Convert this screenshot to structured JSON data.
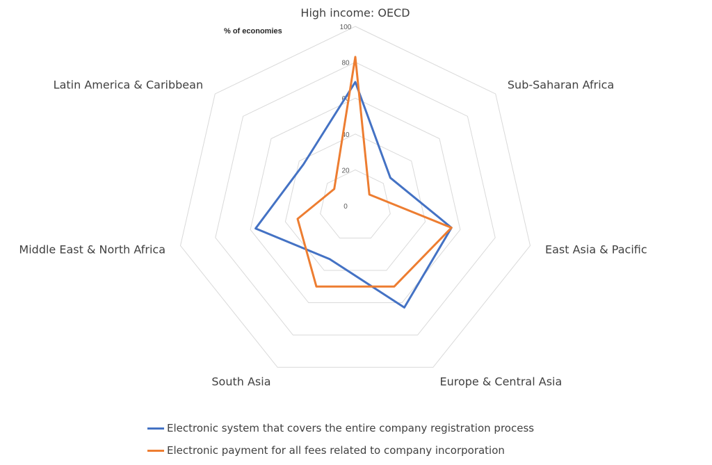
{
  "chart_data": {
    "type": "radar",
    "unit_label": "% of economies",
    "axes": [
      "High income: OECD",
      "Sub-Saharan Africa",
      "East Asia & Pacific",
      "Europe & Central Asia",
      "South Asia",
      "Middle East & North Africa",
      "Latin America & Caribbean"
    ],
    "rlim": [
      0,
      100
    ],
    "ticks": [
      0,
      20,
      40,
      60,
      80,
      100
    ],
    "gridlines": true,
    "legend_position": "bottom",
    "series": [
      {
        "name": "Electronic system that covers the entire company registration process",
        "color": "#4472C4",
        "values": [
          69,
          25,
          55,
          63,
          33,
          57,
          37
        ]
      },
      {
        "name": "Electronic payment for all fees related to company incorporation",
        "color": "#ED7D31",
        "values": [
          83,
          10,
          55,
          50,
          50,
          33,
          15
        ]
      }
    ]
  }
}
